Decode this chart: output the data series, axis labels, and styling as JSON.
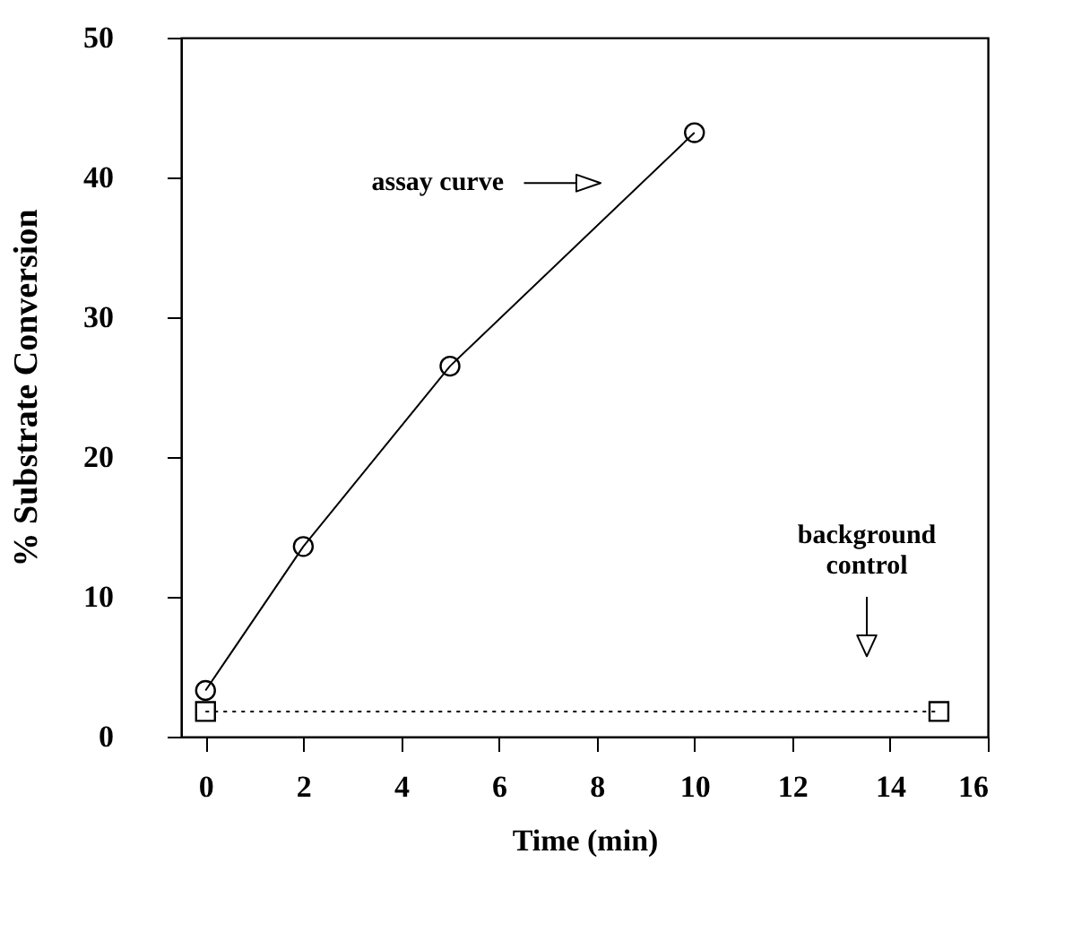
{
  "chart_data": {
    "type": "line",
    "xlabel": "Time (min)",
    "ylabel": "% Substrate Conversion",
    "xlim": [
      -0.5,
      16
    ],
    "xticks": [
      0,
      2,
      4,
      6,
      8,
      10,
      12,
      14,
      16
    ],
    "ylim": [
      0,
      50
    ],
    "yticks": [
      0,
      10,
      20,
      30,
      40,
      50
    ],
    "grid": false,
    "series": [
      {
        "color": "#000000",
        "marker": "circle",
        "line_style": "solid",
        "x": [
          0,
          2,
          5,
          10
        ],
        "values": [
          3.3,
          13.6,
          26.5,
          43.2
        ]
      },
      {
        "color": "#000000",
        "marker": "square",
        "line_style": "dotted",
        "x": [
          0,
          15
        ],
        "values": [
          1.8,
          1.8
        ]
      }
    ],
    "annotations": [
      "assay curve",
      "background\ncontrol"
    ]
  }
}
